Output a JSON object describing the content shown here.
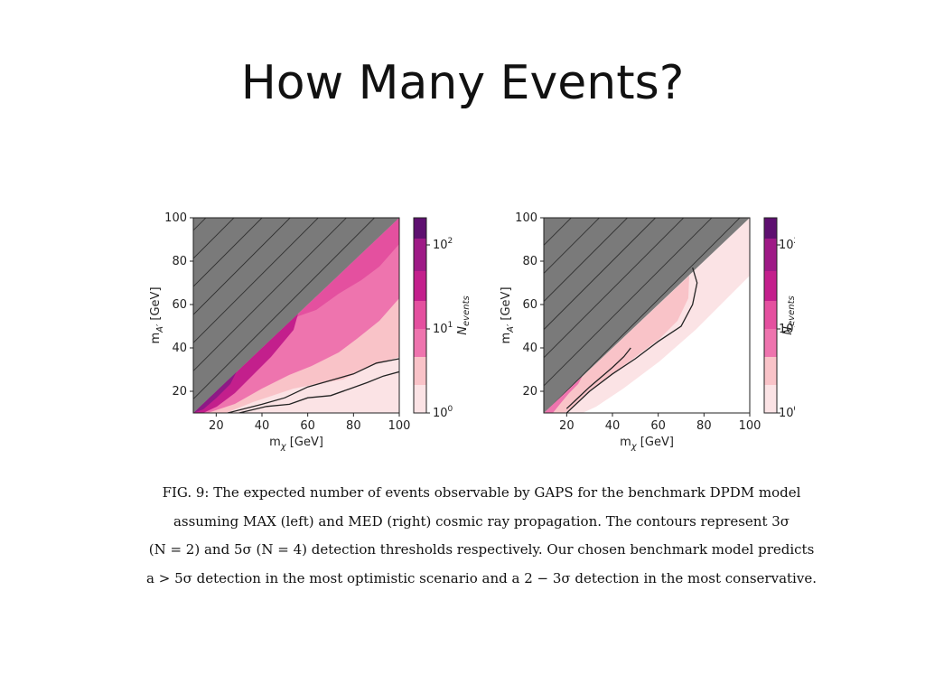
{
  "slide": {
    "title": "How Many Events?"
  },
  "chart_data": [
    {
      "type": "heatmap",
      "panel": "left",
      "xlabel": "m_χ [GeV]",
      "ylabel": "m_A' [GeV]",
      "xlim": [
        10,
        100
      ],
      "ylim": [
        10,
        100
      ],
      "xticks": [
        "20",
        "40",
        "60",
        "80",
        "100"
      ],
      "yticks": [
        "20",
        "40",
        "60",
        "80",
        "100"
      ],
      "colorbar": {
        "label": "N_events",
        "scale": "log",
        "ticks": [
          "10⁰",
          "10¹",
          "10²"
        ]
      },
      "excluded_region": "m_A' > m_χ (hatched)",
      "contours": [
        {
          "name": "3σ (N = 2)",
          "x": [
            25,
            40,
            50,
            60,
            70,
            80,
            90,
            100
          ],
          "y": [
            10,
            14,
            17,
            22,
            25,
            28,
            33,
            35
          ]
        },
        {
          "name": "5σ (N = 4)",
          "x": [
            30,
            42,
            52,
            60,
            70,
            78,
            86,
            93,
            100
          ],
          "y": [
            10,
            13,
            14,
            17,
            18,
            21,
            24,
            27,
            29
          ]
        }
      ]
    },
    {
      "type": "heatmap",
      "panel": "right",
      "xlabel": "m_χ [GeV]",
      "ylabel": "m_A' [GeV]",
      "xlim": [
        10,
        100
      ],
      "ylim": [
        10,
        100
      ],
      "xticks": [
        "20",
        "40",
        "60",
        "80",
        "100"
      ],
      "yticks": [
        "20",
        "40",
        "60",
        "80",
        "100"
      ],
      "colorbar": {
        "label": "N_events",
        "scale": "log",
        "ticks": [
          "10⁰",
          "10¹",
          "10²"
        ]
      },
      "excluded_region": "m_A' > m_χ (hatched)",
      "contours": [
        {
          "name": "3σ (N = 2)",
          "x": [
            20,
            30,
            40,
            45,
            48
          ],
          "y": [
            12,
            22,
            31,
            36,
            40
          ]
        },
        {
          "name": "5σ (N = 4)",
          "x": [
            20,
            30,
            40,
            50,
            60,
            70,
            75,
            77,
            75
          ],
          "y": [
            10,
            20,
            28,
            35,
            43,
            50,
            60,
            70,
            77
          ]
        }
      ]
    }
  ],
  "caption": {
    "line1": "FIG. 9: The expected number of events observable by GAPS for the benchmark DPDM model",
    "line2": "assuming MAX (left) and MED (right) cosmic ray propagation. The contours represent 3σ",
    "line3": "(N = 2) and 5σ (N = 4) detection thresholds respectively. Our chosen benchmark model predicts",
    "line4": "a > 5σ detection in the most optimistic scenario and a 2 − 3σ detection in the most conservative."
  }
}
